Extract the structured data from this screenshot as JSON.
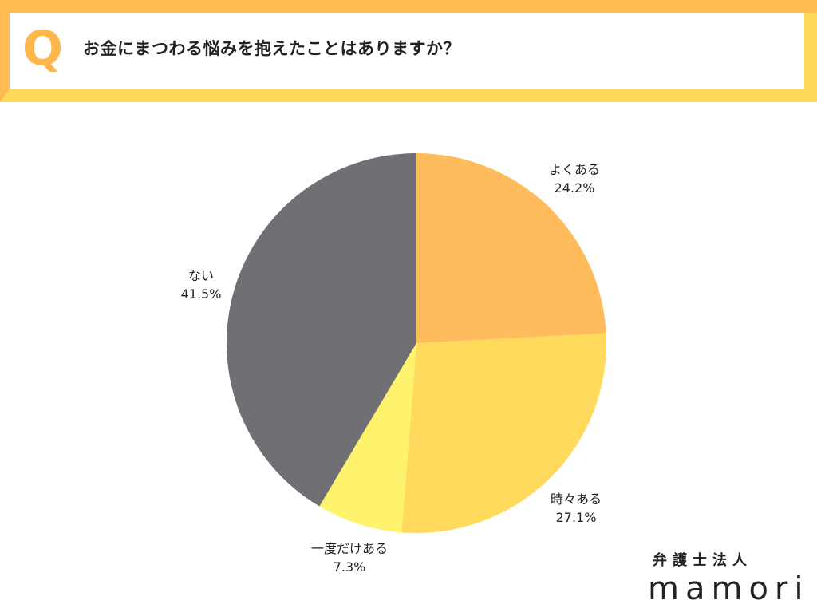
{
  "header": {
    "q_mark": "Q",
    "question": "お金にまつわる悩みを抱えたことはありますか？",
    "colors": {
      "frame_top": "#FFBA52",
      "frame_bottom": "#FFD95A",
      "panel": "#FFFFFF",
      "q_mark": "#FFB74D"
    }
  },
  "chart_data": {
    "type": "pie",
    "title": "お金にまつわる悩みを抱えたことはありますか？",
    "categories": [
      "よくある",
      "時々ある",
      "一度だけある",
      "ない"
    ],
    "values": [
      24.2,
      27.1,
      7.3,
      41.5
    ],
    "unit": "%",
    "colors": [
      "#FFBC5C",
      "#FFDA5C",
      "#FFF36E",
      "#707074"
    ],
    "start_angle": "12 o'clock, clockwise",
    "legend": "none (labels placed outside slices)"
  },
  "labels": {
    "s0": {
      "name": "よくある",
      "pct": "24.2%"
    },
    "s1": {
      "name": "時々ある",
      "pct": "27.1%"
    },
    "s2": {
      "name": "一度だけある",
      "pct": "7.3%"
    },
    "s3": {
      "name": "ない",
      "pct": "41.5%"
    }
  },
  "logo": {
    "subtitle": "弁護士法人",
    "name": "mamori"
  }
}
